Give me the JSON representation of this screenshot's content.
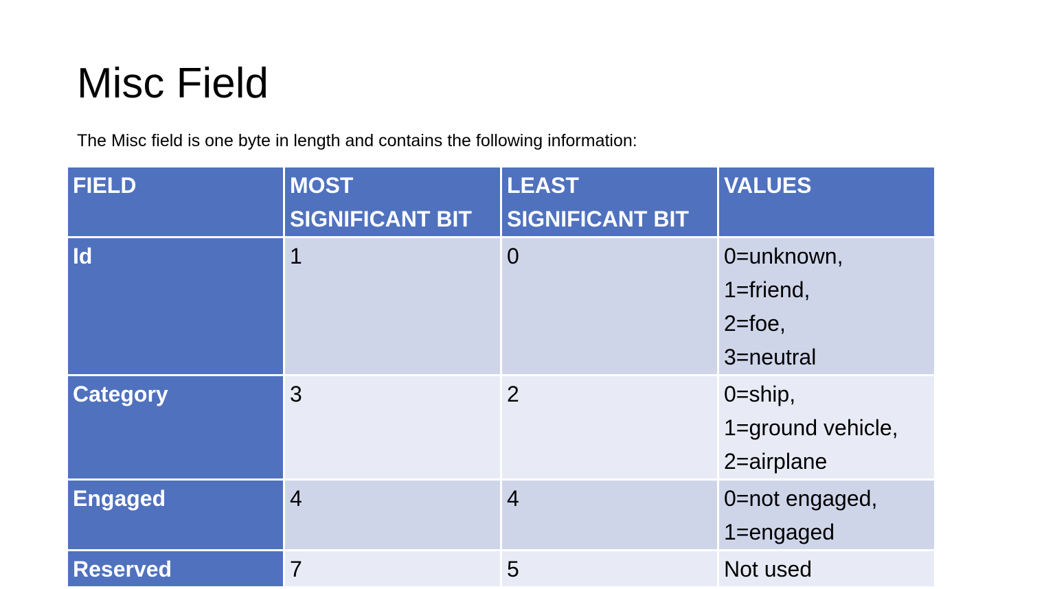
{
  "slide": {
    "title": "Misc Field",
    "intro": "The Misc field is one byte in length and contains the following information:"
  },
  "table": {
    "headers": {
      "field": "FIELD",
      "msb": [
        "MOST",
        "SIGNIFICANT BIT"
      ],
      "lsb": [
        "LEAST",
        "SIGNIFICANT BIT"
      ],
      "values": "VALUES"
    },
    "rows": [
      {
        "field": "Id",
        "msb": "1",
        "lsb": "0",
        "values": [
          "0=unknown,",
          "1=friend,",
          "2=foe,",
          "3=neutral"
        ]
      },
      {
        "field": "Category",
        "msb": "3",
        "lsb": "2",
        "values": [
          "0=ship,",
          "1=ground vehicle,",
          "2=airplane"
        ]
      },
      {
        "field": "Engaged",
        "msb": "4",
        "lsb": "4",
        "values": [
          "0=not engaged,",
          "1=engaged"
        ]
      },
      {
        "field": "Reserved",
        "msb": "7",
        "lsb": "5",
        "values": [
          "Not used"
        ]
      }
    ]
  },
  "colors": {
    "header_bg": "#4f71be",
    "row_dark": "#cfd5e9",
    "row_light": "#e8ebf5",
    "header_text": "#ffffff"
  }
}
